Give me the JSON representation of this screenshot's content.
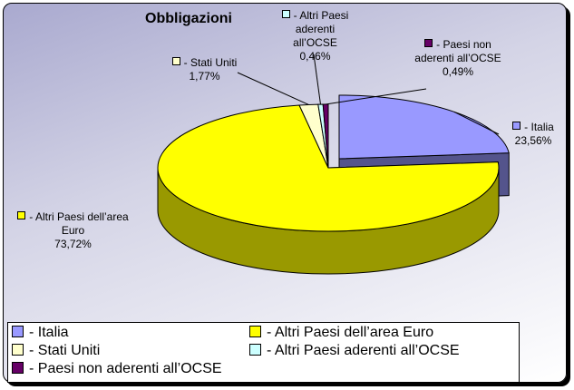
{
  "chart_data": {
    "type": "pie",
    "title": "Obbligazioni",
    "categories": [
      "- Italia",
      "- Altri Paesi dell’area Euro",
      "- Stati Uniti",
      "- Altri Paesi aderenti all’OCSE",
      "- Paesi non aderenti all’OCSE"
    ],
    "values": [
      23.56,
      73.72,
      1.77,
      0.46,
      0.49
    ],
    "value_labels": [
      "23,56%",
      "73,72%",
      "1,77%",
      "0,46%",
      "0,49%"
    ],
    "colors": [
      "#9999ff",
      "#ffff00",
      "#ffffcc",
      "#ccffff",
      "#660066"
    ],
    "legend": "bottom"
  }
}
